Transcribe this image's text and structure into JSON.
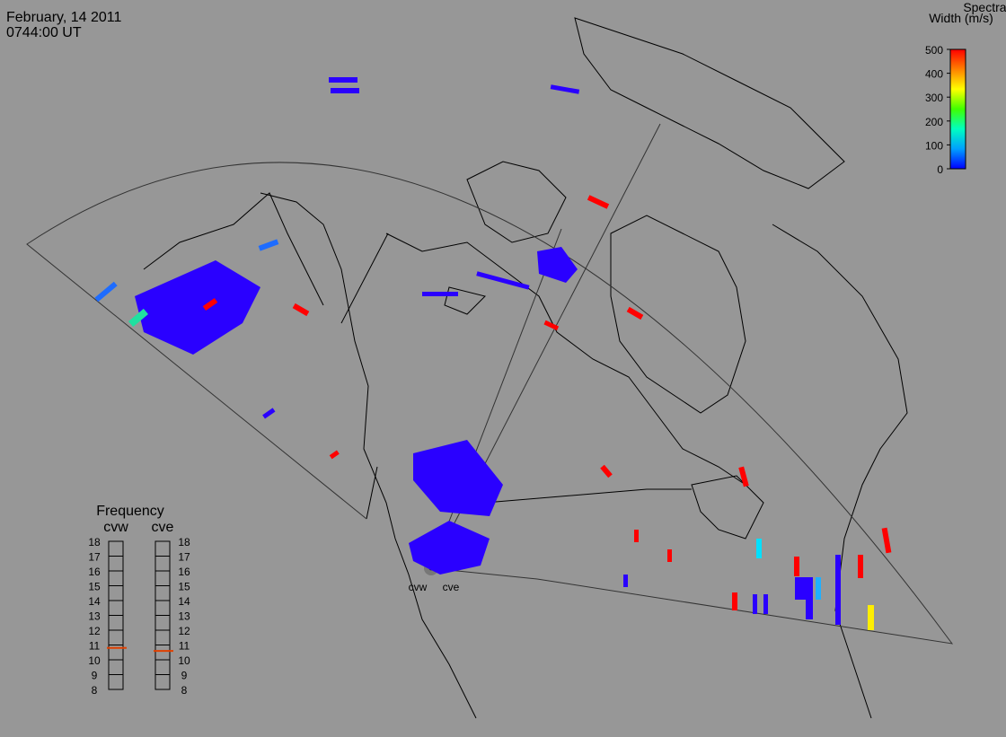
{
  "header": {
    "date": "February, 14 2011",
    "time": "0744:00 UT"
  },
  "colorbar": {
    "title_lines": [
      "Spectral",
      "Width (m/s)"
    ],
    "lim": [
      0,
      500
    ],
    "ticks": [
      0,
      100,
      200,
      300,
      400,
      500
    ],
    "colors": [
      "#0000ff",
      "#00a0ff",
      "#00ffc0",
      "#40ff00",
      "#ffff00",
      "#ff8000",
      "#ff0000"
    ]
  },
  "frequency": {
    "title": "Frequency",
    "lim": [
      8,
      18
    ],
    "ticks": [
      8,
      9,
      10,
      11,
      12,
      13,
      14,
      15,
      16,
      17,
      18
    ],
    "marker_color": "#e04000",
    "radars": [
      {
        "name": "cvw",
        "value": 10.8
      },
      {
        "name": "cve",
        "value": 10.6
      }
    ]
  },
  "radar_labels": [
    "cvw",
    "cve"
  ]
}
